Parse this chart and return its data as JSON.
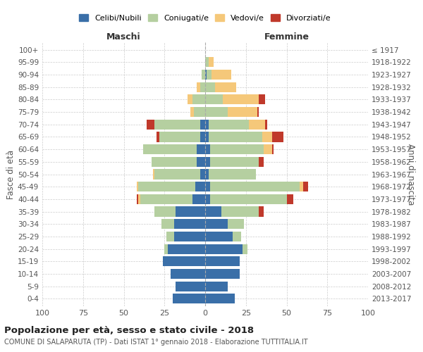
{
  "age_groups": [
    "0-4",
    "5-9",
    "10-14",
    "15-19",
    "20-24",
    "25-29",
    "30-34",
    "35-39",
    "40-44",
    "45-49",
    "50-54",
    "55-59",
    "60-64",
    "65-69",
    "70-74",
    "75-79",
    "80-84",
    "85-89",
    "90-94",
    "95-99",
    "100+"
  ],
  "birth_years": [
    "2013-2017",
    "2008-2012",
    "2003-2007",
    "1998-2002",
    "1993-1997",
    "1988-1992",
    "1983-1987",
    "1978-1982",
    "1973-1977",
    "1968-1972",
    "1963-1967",
    "1958-1962",
    "1953-1957",
    "1948-1952",
    "1943-1947",
    "1938-1942",
    "1933-1937",
    "1928-1932",
    "1923-1927",
    "1918-1922",
    "≤ 1917"
  ],
  "male": {
    "celibi": [
      20,
      18,
      21,
      26,
      23,
      19,
      19,
      18,
      8,
      6,
      3,
      5,
      5,
      3,
      3,
      0,
      0,
      0,
      0,
      0,
      0
    ],
    "coniugati": [
      0,
      0,
      0,
      0,
      2,
      5,
      8,
      13,
      32,
      35,
      28,
      28,
      33,
      25,
      28,
      7,
      8,
      3,
      2,
      0,
      0
    ],
    "vedovi": [
      0,
      0,
      0,
      0,
      0,
      0,
      0,
      0,
      1,
      1,
      1,
      0,
      0,
      0,
      0,
      2,
      3,
      2,
      0,
      0,
      0
    ],
    "divorziati": [
      0,
      0,
      0,
      0,
      0,
      0,
      0,
      0,
      1,
      0,
      0,
      0,
      0,
      2,
      5,
      0,
      0,
      0,
      0,
      0,
      0
    ]
  },
  "female": {
    "nubili": [
      18,
      14,
      21,
      21,
      23,
      17,
      14,
      10,
      3,
      3,
      2,
      3,
      3,
      2,
      2,
      0,
      0,
      0,
      1,
      0,
      0
    ],
    "coniugate": [
      0,
      0,
      0,
      0,
      3,
      5,
      10,
      23,
      47,
      55,
      29,
      30,
      33,
      33,
      25,
      14,
      11,
      6,
      3,
      2,
      0
    ],
    "vedove": [
      0,
      0,
      0,
      0,
      0,
      0,
      0,
      0,
      0,
      2,
      0,
      0,
      5,
      6,
      10,
      18,
      22,
      13,
      12,
      3,
      0
    ],
    "divorziate": [
      0,
      0,
      0,
      0,
      0,
      0,
      0,
      3,
      4,
      3,
      0,
      3,
      1,
      7,
      1,
      1,
      4,
      0,
      0,
      0,
      0
    ]
  },
  "colors": {
    "celibi": "#3a6fa8",
    "coniugati": "#b5cfa0",
    "vedovi": "#f5c87a",
    "divorziati": "#c0392b"
  },
  "xlim": 100,
  "title": "Popolazione per età, sesso e stato civile - 2018",
  "subtitle": "COMUNE DI SALAPARUTA (TP) - Dati ISTAT 1° gennaio 2018 - Elaborazione TUTTITALIA.IT",
  "xlabel_left": "Maschi",
  "xlabel_right": "Femmine",
  "ylabel_left": "Fasce di età",
  "ylabel_right": "Anni di nascita",
  "legend_labels": [
    "Celibi/Nubili",
    "Coniugati/e",
    "Vedovi/e",
    "Divorziati/e"
  ],
  "bg_color": "#ffffff",
  "grid_color": "#cccccc"
}
